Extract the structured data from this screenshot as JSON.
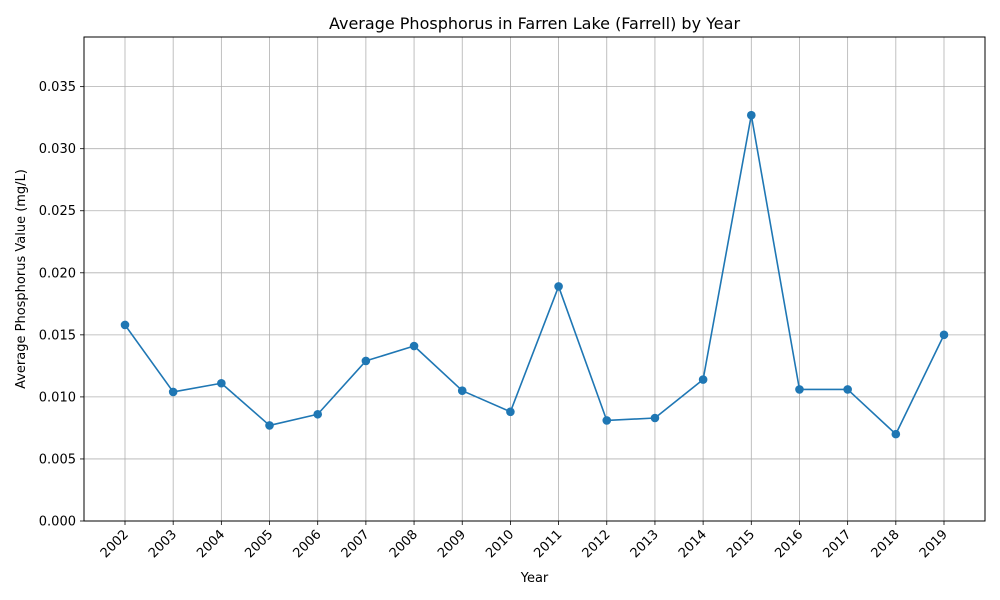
{
  "chart_data": {
    "type": "line",
    "title": "Average Phosphorus in Farren Lake (Farrell) by Year",
    "xlabel": "Year",
    "ylabel": "Average Phosphorus Value (mg/L)",
    "x": [
      "2002",
      "2003",
      "2004",
      "2005",
      "2006",
      "2007",
      "2008",
      "2009",
      "2010",
      "2011",
      "2012",
      "2013",
      "2014",
      "2015",
      "2016",
      "2017",
      "2018",
      "2019"
    ],
    "series": [
      {
        "values": [
          0.0158,
          0.0104,
          0.0111,
          0.0077,
          0.0086,
          0.0129,
          0.0141,
          0.0105,
          0.0088,
          0.0189,
          0.0081,
          0.0083,
          0.0114,
          0.0327,
          0.0106,
          0.0106,
          0.007,
          0.015
        ],
        "color": "#1f77b4",
        "marker": "circle"
      }
    ],
    "ylim": [
      0,
      0.039
    ],
    "yticks": [
      "0.000",
      "0.005",
      "0.010",
      "0.015",
      "0.020",
      "0.025",
      "0.030",
      "0.035"
    ],
    "ytick_values": [
      0,
      0.005,
      0.01,
      0.015,
      0.02,
      0.025,
      0.03,
      0.035
    ],
    "grid": true,
    "x_tick_rotation": "45"
  }
}
